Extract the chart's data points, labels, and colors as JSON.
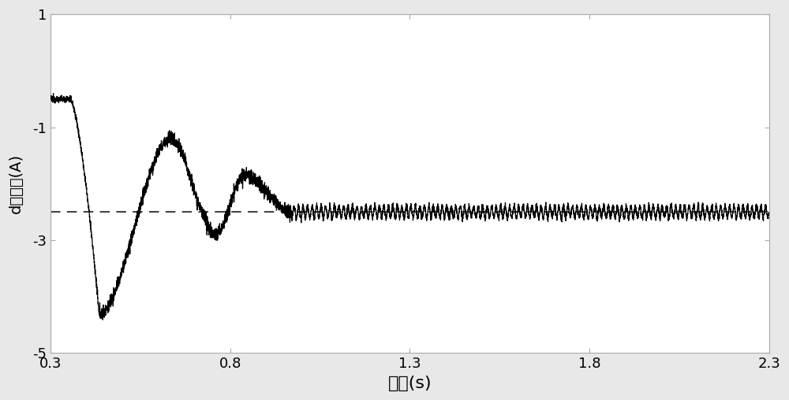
{
  "xlim": [
    0.3,
    2.3
  ],
  "ylim": [
    -5,
    1
  ],
  "xticks": [
    0.3,
    0.8,
    1.3,
    1.8,
    2.3
  ],
  "yticks": [
    -5,
    -3,
    -1,
    1
  ],
  "xlabel": "时间(s)",
  "ylabel": "d轴电流(A)",
  "dashed_y": -2.5,
  "line_color": "#000000",
  "dashed_color": "#444444",
  "background_color": "#e8e8e8",
  "axes_bg": "#ffffff",
  "figsize": [
    10.0,
    5.08
  ],
  "dpi": 100,
  "spine_color": "#aaaaaa",
  "xlabel_fontsize": 16,
  "ylabel_fontsize": 14,
  "tick_fontsize": 13
}
